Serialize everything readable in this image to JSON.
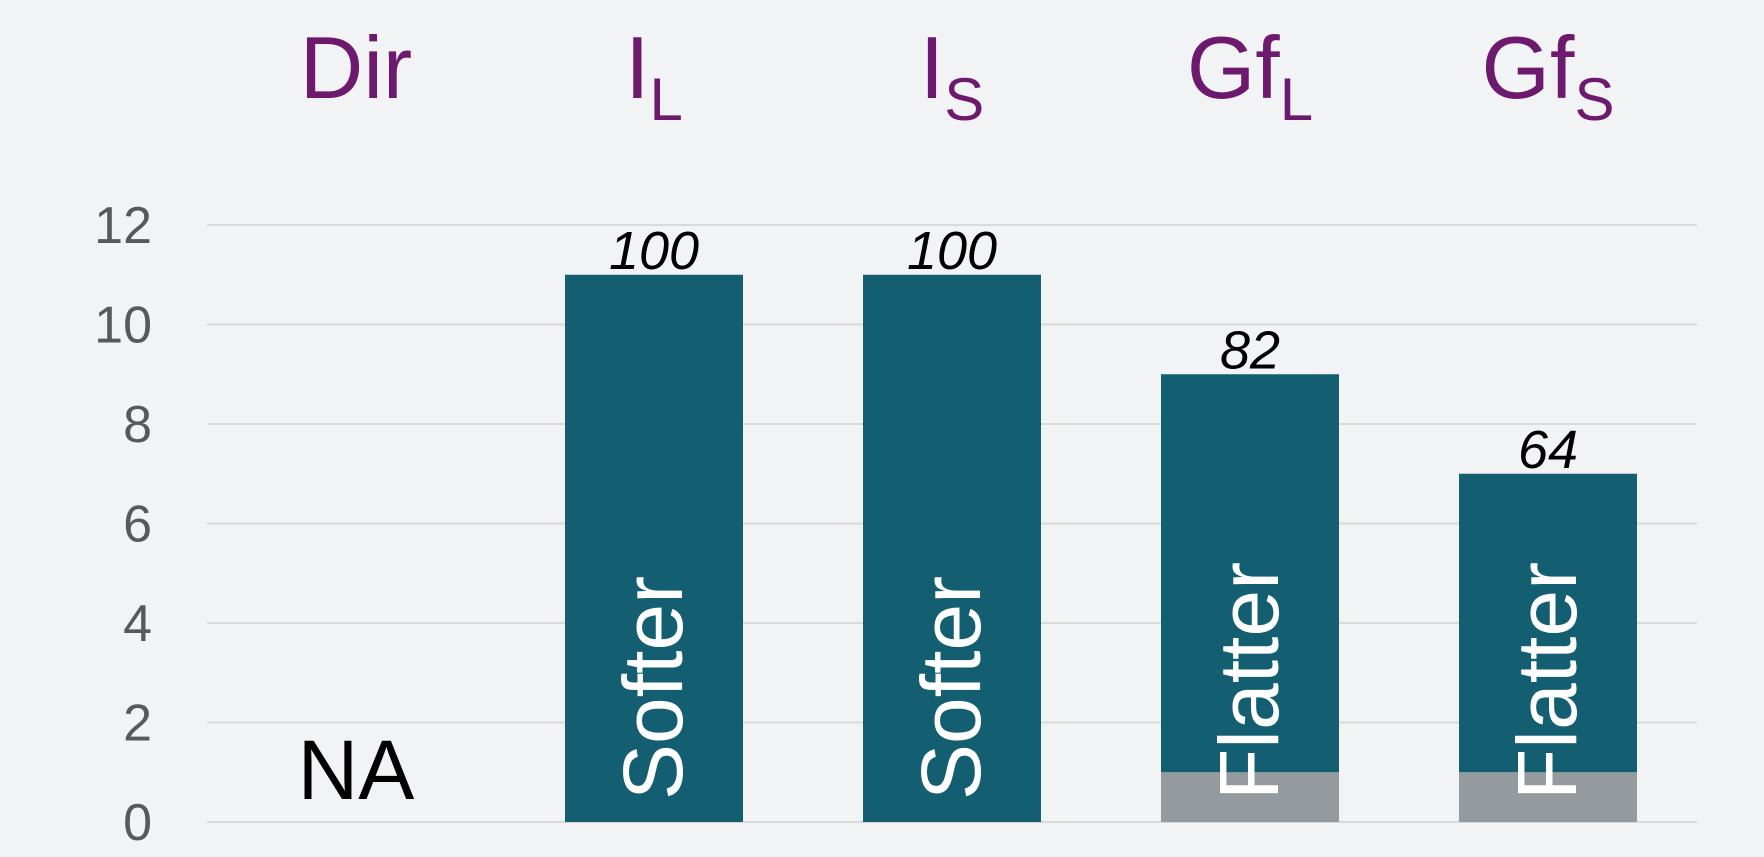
{
  "chart_data": {
    "type": "stacked_bar",
    "categories": [
      "Dir",
      "I",
      "I",
      "Gf",
      "Gf"
    ],
    "category_subscripts": [
      null,
      "L",
      "S",
      "L",
      "S"
    ],
    "category_color": "#6d1a6e",
    "series": [
      {
        "color": "#959a9f",
        "values": [
          null,
          0,
          0,
          1,
          1
        ]
      },
      {
        "color": "#135f71",
        "values": [
          null,
          11,
          11,
          8,
          6
        ]
      }
    ],
    "top_labels": [
      null,
      100,
      100,
      82,
      64
    ],
    "bar_labels": [
      "NA",
      "Softer",
      "Softer",
      "Flatter",
      "Flatter"
    ],
    "ylim": [
      0,
      12
    ],
    "yticks": [
      0,
      2,
      4,
      6,
      8,
      10,
      12
    ],
    "grid": true
  }
}
